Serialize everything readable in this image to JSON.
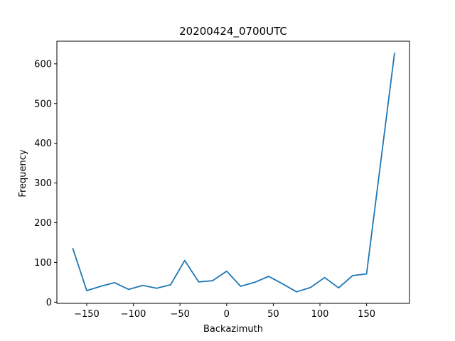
{
  "chart_data": {
    "type": "line",
    "title": "20200424_0700UTC",
    "xlabel": "Backazimuth",
    "ylabel": "Frequency",
    "xlim": [
      -182,
      196
    ],
    "ylim": [
      -3,
      657
    ],
    "xticks": [
      -150,
      -100,
      -50,
      0,
      50,
      100,
      150
    ],
    "yticks": [
      0,
      100,
      200,
      300,
      400,
      500,
      600
    ],
    "grid": false,
    "legend": "none",
    "series": [
      {
        "color": "#1f77b4",
        "x": [
          -165,
          -150,
          -135,
          -120,
          -105,
          -90,
          -75,
          -60,
          -45,
          -30,
          -15,
          0,
          15,
          30,
          45,
          60,
          75,
          90,
          105,
          120,
          135,
          150,
          180
        ],
        "y": [
          136,
          29,
          40,
          49,
          32,
          42,
          35,
          44,
          105,
          51,
          54,
          78,
          40,
          50,
          65,
          46,
          26,
          37,
          62,
          36,
          67,
          71,
          628
        ]
      }
    ]
  }
}
